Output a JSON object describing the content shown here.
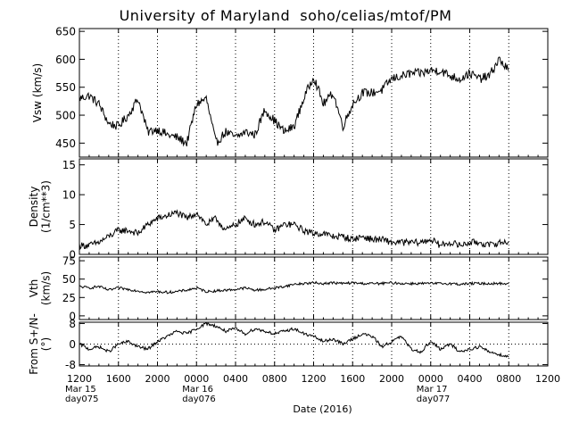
{
  "title": "University of Maryland  soho/celias/mtof/PM",
  "chart_data": [
    {
      "type": "line",
      "ylabel": "Vsw (km/s)",
      "ylim": [
        425,
        655
      ],
      "yticks": [
        450,
        500,
        550,
        600,
        650
      ],
      "x": [
        0,
        1,
        2,
        3,
        4,
        5,
        6,
        7,
        8,
        9,
        10,
        11,
        12,
        13,
        14,
        15,
        16,
        17,
        18,
        19,
        20,
        21,
        22,
        23,
        24,
        25,
        26,
        27,
        28,
        29,
        30,
        31,
        32,
        33,
        34,
        35,
        36,
        37,
        38,
        39,
        40,
        41,
        42,
        43,
        44
      ],
      "values": [
        530,
        535,
        520,
        485,
        480,
        500,
        530,
        470,
        475,
        465,
        460,
        450,
        520,
        530,
        450,
        470,
        460,
        470,
        465,
        510,
        490,
        470,
        480,
        530,
        570,
        520,
        540,
        480,
        520,
        540,
        540,
        545,
        565,
        570,
        575,
        575,
        580,
        580,
        570,
        565,
        575,
        565,
        570,
        600,
        580
      ]
    },
    {
      "type": "line",
      "ylabel": "Density (1/cm**3)",
      "ylim": [
        0,
        16
      ],
      "yticks": [
        0,
        5,
        10,
        15
      ],
      "x": [
        0,
        1,
        2,
        3,
        4,
        5,
        6,
        7,
        8,
        9,
        10,
        11,
        12,
        13,
        14,
        15,
        16,
        17,
        18,
        19,
        20,
        21,
        22,
        23,
        24,
        25,
        26,
        27,
        28,
        29,
        30,
        31,
        32,
        33,
        34,
        35,
        36,
        37,
        38,
        39,
        40,
        41,
        42,
        43,
        44
      ],
      "values": [
        1.5,
        1.5,
        2,
        3,
        4,
        4,
        3.5,
        5,
        6,
        6.5,
        7,
        6,
        7,
        5,
        6,
        4,
        5,
        6,
        5,
        5.5,
        4,
        5,
        5,
        4,
        3.5,
        3.5,
        3,
        3,
        2.5,
        3,
        2.5,
        2.5,
        2,
        2,
        2,
        2,
        2.5,
        1.5,
        2,
        1.5,
        2,
        2,
        1.5,
        2,
        2
      ]
    },
    {
      "type": "line",
      "ylabel": "Vth (km/s)",
      "ylim": [
        -5,
        80
      ],
      "yticks": [
        0,
        25,
        50,
        75
      ],
      "x": [
        0,
        1,
        2,
        3,
        4,
        5,
        6,
        7,
        8,
        9,
        10,
        11,
        12,
        13,
        14,
        15,
        16,
        17,
        18,
        19,
        20,
        21,
        22,
        23,
        24,
        25,
        26,
        27,
        28,
        29,
        30,
        31,
        32,
        33,
        34,
        35,
        36,
        37,
        38,
        39,
        40,
        41,
        42,
        43,
        44
      ],
      "values": [
        40,
        38,
        40,
        35,
        38,
        36,
        34,
        32,
        33,
        32,
        33,
        35,
        38,
        33,
        34,
        35,
        36,
        38,
        35,
        36,
        38,
        40,
        43,
        44,
        45,
        44,
        45,
        44,
        45,
        44,
        44,
        44,
        45,
        44,
        44,
        44,
        44,
        44,
        44,
        43,
        44,
        44,
        44,
        44,
        44
      ]
    },
    {
      "type": "line",
      "ylabel": "From S+/N-(°)",
      "ylim": [
        -8.5,
        8.5
      ],
      "yticks": [
        -8,
        0,
        8
      ],
      "reference_line": 0,
      "x": [
        0,
        1,
        2,
        3,
        4,
        5,
        6,
        7,
        8,
        9,
        10,
        11,
        12,
        13,
        14,
        15,
        16,
        17,
        18,
        19,
        20,
        21,
        22,
        23,
        24,
        25,
        26,
        27,
        28,
        29,
        30,
        31,
        32,
        33,
        34,
        35,
        36,
        37,
        38,
        39,
        40,
        41,
        42,
        43,
        44
      ],
      "values": [
        0,
        -2,
        -1,
        -3,
        0,
        1,
        -1,
        -2,
        1,
        3,
        5,
        4,
        6,
        8,
        7,
        5,
        6,
        4,
        6,
        5,
        4,
        5,
        6,
        4,
        3,
        1,
        2,
        0,
        2,
        4,
        3,
        -1,
        1,
        3,
        -2,
        -3,
        1,
        -2,
        0,
        -3,
        -2,
        -1,
        -3,
        -4,
        -5
      ]
    }
  ],
  "x_axis": {
    "xlabel": "Date (2016)",
    "ticks": [
      "1200",
      "1600",
      "2000",
      "0000",
      "0400",
      "0800",
      "1200",
      "1600",
      "2000",
      "0000",
      "0400",
      "0800",
      "1200"
    ],
    "day_labels": [
      {
        "tick_index": 0,
        "month": "Mar 15",
        "day": "day075"
      },
      {
        "tick_index": 3,
        "month": "Mar 16",
        "day": "day076"
      },
      {
        "tick_index": 9,
        "month": "Mar 17",
        "day": "day077"
      }
    ]
  }
}
